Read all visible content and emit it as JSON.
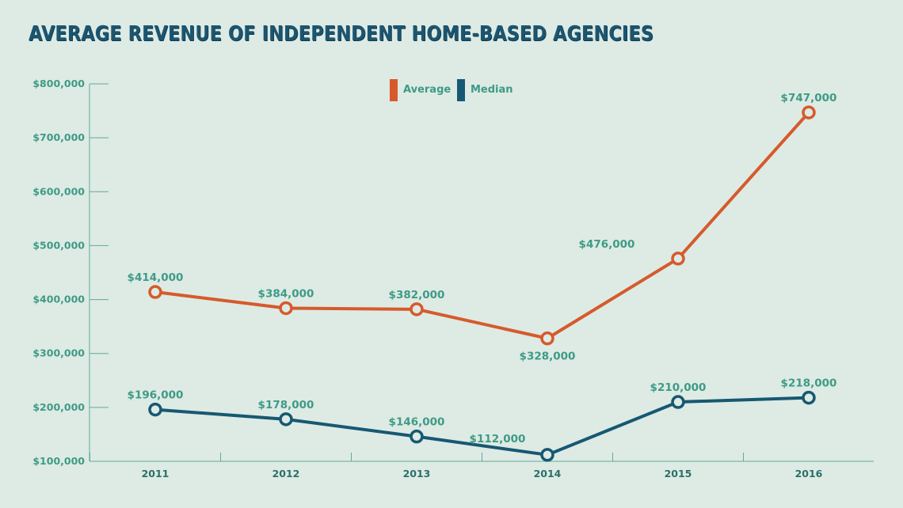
{
  "chart_data": {
    "type": "line",
    "title": "AVERAGE REVENUE OF INDEPENDENT HOME-BASED AGENCIES",
    "xlabel": "",
    "ylabel": "",
    "categories": [
      "2011",
      "2012",
      "2013",
      "2014",
      "2015",
      "2016"
    ],
    "ylim": [
      100000,
      800000
    ],
    "yticks": [
      100000,
      200000,
      300000,
      400000,
      500000,
      600000,
      700000,
      800000
    ],
    "ytick_labels": [
      "$100,000",
      "$200,000",
      "$300,000",
      "$400,000",
      "$500,000",
      "$600,000",
      "$700,000",
      "$800,000"
    ],
    "legend_position": "top-center",
    "grid": false,
    "series": [
      {
        "name": "Average",
        "color": "#d65a2c",
        "values": [
          414000,
          384000,
          382000,
          328000,
          476000,
          747000
        ],
        "labels": [
          "$414,000",
          "$384,000",
          "$382,000",
          "$328,000",
          "$476,000",
          "$747,000"
        ]
      },
      {
        "name": "Median",
        "color": "#175872",
        "values": [
          196000,
          178000,
          146000,
          112000,
          210000,
          218000
        ],
        "labels": [
          "$196,000",
          "$178,000",
          "$146,000",
          "$112,000",
          "$210,000",
          "$218,000"
        ]
      }
    ]
  },
  "colors": {
    "background": "#ddebe4",
    "axis": "#62a99a",
    "label": "#3f9a86",
    "title": "#1c5570"
  }
}
